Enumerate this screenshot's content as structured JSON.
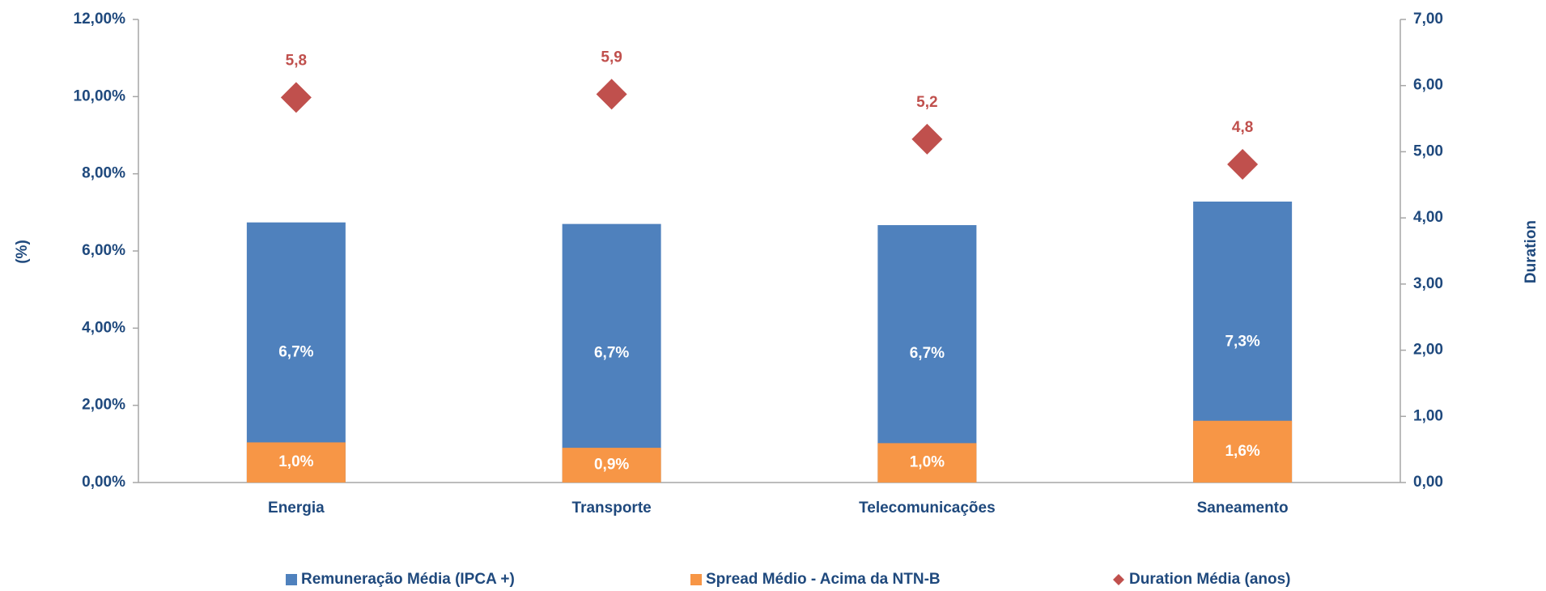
{
  "chart_data": {
    "type": "bar",
    "categories": [
      "Energia",
      "Transporte",
      "Telecomunicações",
      "Saneamento"
    ],
    "series": [
      {
        "name": "Remuneração Média (IPCA +)",
        "color": "#4f81bd",
        "type": "bar",
        "values": [
          6.74,
          6.7,
          6.67,
          7.28
        ],
        "value_labels": [
          "6,7%",
          "6,7%",
          "6,7%",
          "7,3%"
        ]
      },
      {
        "name": "Spread Médio - Acima da NTN-B",
        "color": "#f79646",
        "type": "bar",
        "values": [
          1.04,
          0.9,
          1.02,
          1.6
        ],
        "value_labels": [
          "1,0%",
          "0,9%",
          "1,0%",
          "1,6%"
        ]
      },
      {
        "name": "Duration Média (anos)",
        "color": "#c0504d",
        "type": "scatter",
        "marker": "diamond",
        "axis": "y2",
        "values": [
          5.82,
          5.87,
          5.19,
          4.81
        ],
        "value_labels": [
          "5,8",
          "5,9",
          "5,2",
          "4,8"
        ]
      }
    ],
    "ylabel": "(%)",
    "y2label": "Duration",
    "ylim": [
      0,
      12
    ],
    "yticks": [
      {
        "value": 0,
        "label": "0,00%"
      },
      {
        "value": 2,
        "label": "2,00%"
      },
      {
        "value": 4,
        "label": "4,00%"
      },
      {
        "value": 6,
        "label": "6,00%"
      },
      {
        "value": 8,
        "label": "8,00%"
      },
      {
        "value": 10,
        "label": "10,00%"
      },
      {
        "value": 12,
        "label": "12,00%"
      }
    ],
    "y2lim": [
      0,
      7
    ],
    "y2ticks": [
      {
        "value": 0,
        "label": "0,00"
      },
      {
        "value": 1,
        "label": "1,00"
      },
      {
        "value": 2,
        "label": "2,00"
      },
      {
        "value": 3,
        "label": "3,00"
      },
      {
        "value": 4,
        "label": "4,00"
      },
      {
        "value": 5,
        "label": "5,00"
      },
      {
        "value": 6,
        "label": "6,00"
      },
      {
        "value": 7,
        "label": "7,00"
      }
    ],
    "grid": false,
    "legend": "bottom"
  }
}
